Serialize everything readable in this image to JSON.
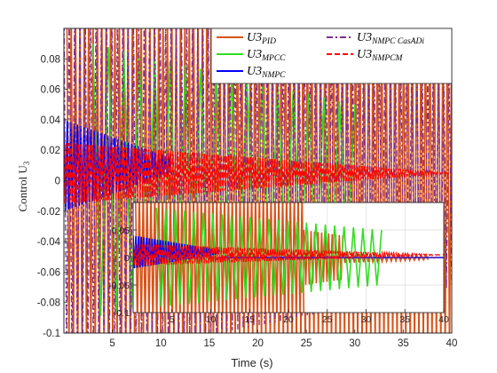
{
  "chart_data": [
    {
      "type": "line",
      "title": "",
      "xlabel": "Time (s)",
      "ylabel": "Control U",
      "ylabel_subscript": "3",
      "xlim": [
        0,
        40
      ],
      "ylim": [
        -0.1,
        0.1
      ],
      "xticks": [
        "5",
        "10",
        "15",
        "20",
        "25",
        "30",
        "35",
        "40"
      ],
      "yticks": [
        "0.08",
        "0.06",
        "0.04",
        "0.02",
        "0",
        "-0.02",
        "-0.04",
        "-0.06",
        "-0.08",
        "-0.1"
      ],
      "grid": true,
      "legend_position": "top-right",
      "series": [
        {
          "name": "U3",
          "sub": "PID",
          "color": "#D95319",
          "style": "solid",
          "segments": [
            {
              "start": 0.3,
              "end": 40,
              "amp_start": 0.12,
              "amp_end": 0.12,
              "period": 0.45,
              "center": 0
            }
          ]
        },
        {
          "name": "U3",
          "sub": "MPCC",
          "color": "#33DD22",
          "style": "solid",
          "segments": [
            {
              "start": 3,
              "end": 30,
              "amp_start": 0.09,
              "amp_end": 0.05,
              "period": 1.6,
              "center": 0
            }
          ]
        },
        {
          "name": "U3",
          "sub": "NMPC",
          "color": "#0000FF",
          "style": "solid",
          "segments": [
            {
              "start": 0,
              "end": 11,
              "amp_start": 0.03,
              "amp_end": 0.005,
              "period": 0.35,
              "center": 0.01
            }
          ]
        },
        {
          "name": "U3",
          "sub": "NMPC CasADi",
          "color": "#7E2F8E",
          "style": "dashdot",
          "segments": [
            {
              "start": 0,
              "end": 40,
              "amp_start": 0.12,
              "amp_end": 0.07,
              "period": 0.55,
              "center": 0
            }
          ]
        },
        {
          "name": "U3",
          "sub": "NMPCM",
          "color": "#FF0000",
          "style": "dashed",
          "segments": [
            {
              "start": 0,
              "end": 40,
              "amp_start": 0.02,
              "amp_end": 0.0,
              "period": 0.25,
              "center": 0.005
            }
          ]
        }
      ]
    },
    {
      "type": "line",
      "title": "inset",
      "xlim": [
        0,
        40
      ],
      "ylim": [
        -0.1,
        0.1
      ],
      "xticks": [
        "5",
        "10",
        "15",
        "20",
        "25",
        "30",
        "35",
        "40"
      ],
      "yticks": [
        "0.05",
        "0",
        "-0.05",
        "-0.1"
      ],
      "grid": true,
      "series": [
        {
          "name": "U3",
          "sub": "PID",
          "color": "#D95319",
          "style": "solid",
          "segments": [
            {
              "start": 0.3,
              "end": 22,
              "amp_start": 0.13,
              "amp_end": 0.12,
              "period": 0.5,
              "center": 0
            },
            {
              "start": 22,
              "end": 27,
              "amp_start": 0.05,
              "amp_end": 0.04,
              "period": 0.45,
              "center": 0
            },
            {
              "start": 27,
              "end": 38,
              "amp_start": 0.01,
              "amp_end": 0.004,
              "period": 0.6,
              "center": 0
            }
          ]
        },
        {
          "name": "U3",
          "sub": "MPCC",
          "color": "#33DD22",
          "style": "solid",
          "segments": [
            {
              "start": 3,
              "end": 32,
              "amp_start": 0.09,
              "amp_end": 0.05,
              "period": 1.2,
              "center": 0
            }
          ]
        },
        {
          "name": "U3",
          "sub": "NMPC",
          "color": "#0000FF",
          "style": "solid",
          "segments": [
            {
              "start": 0,
              "end": 11,
              "amp_start": 0.03,
              "amp_end": 0.004,
              "period": 0.35,
              "center": 0.01
            },
            {
              "start": 11,
              "end": 40,
              "amp_start": 0.0,
              "amp_end": 0.0,
              "period": 1,
              "center": 0
            }
          ]
        },
        {
          "name": "U3",
          "sub": "NMPC CasADi",
          "color": "#7E2F8E",
          "style": "dashdot",
          "segments": [
            {
              "start": 0,
              "end": 40,
              "amp_start": 0.004,
              "amp_end": 0.001,
              "period": 0.5,
              "center": 0
            }
          ]
        },
        {
          "name": "U3",
          "sub": "NMPCM",
          "color": "#FF0000",
          "style": "dashed",
          "segments": [
            {
              "start": 0,
              "end": 40,
              "amp_start": 0.02,
              "amp_end": 0.0,
              "period": 0.3,
              "center": 0.005
            }
          ]
        }
      ]
    }
  ]
}
